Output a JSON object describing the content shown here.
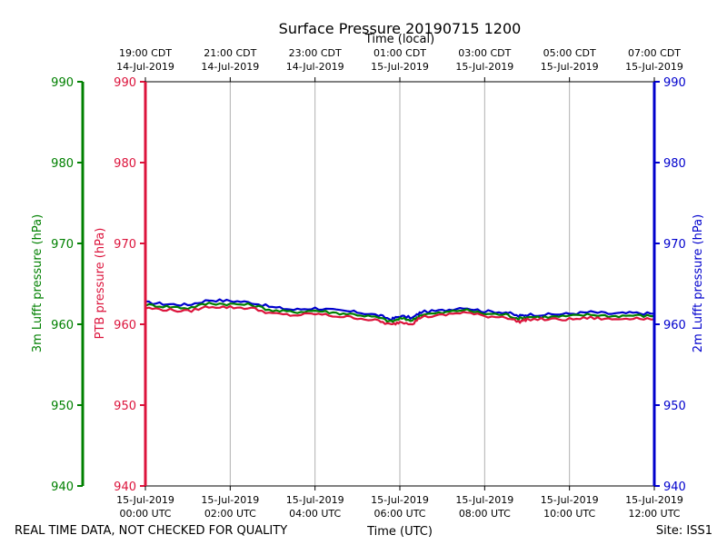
{
  "chart_data": {
    "type": "line",
    "title": "Surface Pressure 20190715 1200",
    "top_axis_label": "Time (local)",
    "xlabel": "Time (UTC)",
    "footer_left": "REAL TIME DATA, NOT CHECKED FOR QUALITY",
    "footer_right": "Site: ISS1",
    "xlim": [
      0,
      12
    ],
    "grid": "vertical",
    "bottom_ticks": [
      {
        "x": 0,
        "line1": "15-Jul-2019",
        "line2": "00:00 UTC"
      },
      {
        "x": 2,
        "line1": "15-Jul-2019",
        "line2": "02:00 UTC"
      },
      {
        "x": 4,
        "line1": "15-Jul-2019",
        "line2": "04:00 UTC"
      },
      {
        "x": 6,
        "line1": "15-Jul-2019",
        "line2": "06:00 UTC"
      },
      {
        "x": 8,
        "line1": "15-Jul-2019",
        "line2": "08:00 UTC"
      },
      {
        "x": 10,
        "line1": "15-Jul-2019",
        "line2": "10:00 UTC"
      },
      {
        "x": 12,
        "line1": "15-Jul-2019",
        "line2": "12:00 UTC"
      }
    ],
    "top_ticks": [
      {
        "x": 0,
        "line1": "19:00 CDT",
        "line2": "14-Jul-2019"
      },
      {
        "x": 2,
        "line1": "21:00 CDT",
        "line2": "14-Jul-2019"
      },
      {
        "x": 4,
        "line1": "23:00 CDT",
        "line2": "14-Jul-2019"
      },
      {
        "x": 6,
        "line1": "01:00 CDT",
        "line2": "15-Jul-2019"
      },
      {
        "x": 8,
        "line1": "03:00 CDT",
        "line2": "15-Jul-2019"
      },
      {
        "x": 10,
        "line1": "05:00 CDT",
        "line2": "15-Jul-2019"
      },
      {
        "x": 12,
        "line1": "07:00 CDT",
        "line2": "15-Jul-2019"
      }
    ],
    "y_axes": [
      {
        "id": "lufft3m",
        "label": "3m Lufft pressure (hPa)",
        "color": "#008000",
        "ylim": [
          940,
          990
        ],
        "ticks": [
          940,
          950,
          960,
          970,
          980,
          990
        ]
      },
      {
        "id": "ptb",
        "label": "PTB pressure (hPa)",
        "color": "#dc143c",
        "ylim": [
          940,
          990
        ],
        "ticks": [
          940,
          950,
          960,
          970,
          980,
          990
        ]
      },
      {
        "id": "lufft2m",
        "label": "2m Lufft pressure (hPa)",
        "color": "#0000cd",
        "ylim": [
          940,
          990
        ],
        "ticks": [
          940,
          950,
          960,
          970,
          980,
          990
        ]
      }
    ],
    "x": [
      0,
      0.5,
      1,
      1.5,
      2,
      2.5,
      3,
      3.5,
      4,
      4.5,
      5,
      5.5,
      5.8,
      6,
      6.3,
      6.5,
      7,
      7.5,
      8,
      8.5,
      8.8,
      9,
      9.5,
      10,
      10.5,
      11,
      11.5,
      12
    ],
    "series": [
      {
        "axis": "lufft2m",
        "color": "#0000cd",
        "values": [
          962.7,
          962.5,
          962.4,
          963.0,
          962.9,
          962.7,
          962.1,
          961.8,
          962.0,
          961.7,
          961.5,
          961.1,
          960.6,
          961.0,
          960.8,
          961.5,
          961.7,
          962.1,
          961.6,
          961.5,
          961.0,
          961.2,
          961.2,
          961.3,
          961.5,
          961.3,
          961.4,
          961.3
        ]
      },
      {
        "axis": "lufft3m",
        "color": "#008000",
        "values": [
          962.4,
          962.2,
          962.0,
          962.6,
          962.5,
          962.4,
          961.7,
          961.5,
          961.7,
          961.4,
          961.2,
          960.8,
          960.3,
          960.7,
          960.5,
          961.2,
          961.4,
          961.8,
          961.3,
          961.2,
          960.7,
          960.9,
          960.9,
          961.0,
          961.2,
          961.0,
          961.1,
          961.0
        ]
      },
      {
        "axis": "ptb",
        "color": "#dc143c",
        "values": [
          962.0,
          961.8,
          961.6,
          962.2,
          962.1,
          962.0,
          961.3,
          961.1,
          961.3,
          961.0,
          960.8,
          960.4,
          959.9,
          960.3,
          960.1,
          960.9,
          961.1,
          961.5,
          961.0,
          960.9,
          960.3,
          960.6,
          960.6,
          960.6,
          960.8,
          960.6,
          960.8,
          960.6
        ]
      }
    ]
  }
}
